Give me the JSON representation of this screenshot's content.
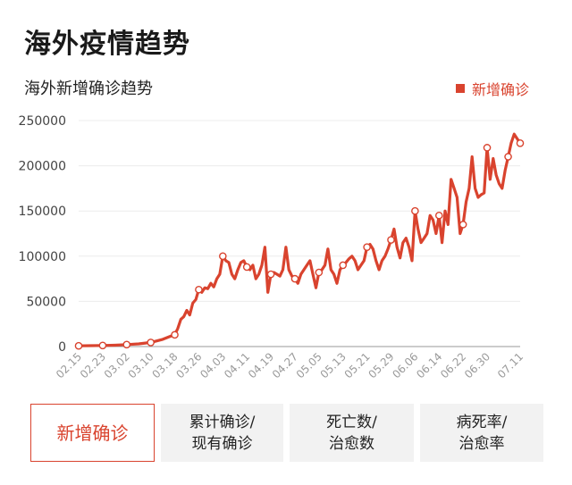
{
  "page": {
    "title": "海外疫情趋势"
  },
  "legend": {
    "label": "新增确诊",
    "color": "#d9432e"
  },
  "tabs": [
    {
      "label": "新增确诊",
      "active": true
    },
    {
      "label": "累计确诊/\n现有确诊",
      "active": false
    },
    {
      "label": "死亡数/\n治愈数",
      "active": false
    },
    {
      "label": "病死率/\n治愈率",
      "active": false
    }
  ],
  "chart_data": {
    "type": "line",
    "title": "海外新增确诊趋势",
    "xlabel": "",
    "ylabel": "",
    "ylim": [
      0,
      250000
    ],
    "yticks": [
      "250000",
      "200000",
      "150000",
      "100000",
      "50000",
      "0"
    ],
    "ytick_values": [
      250000,
      200000,
      150000,
      100000,
      50000,
      0
    ],
    "xticks": [
      "02.15",
      "02.23",
      "03.02",
      "03.10",
      "03.18",
      "03.26",
      "04.03",
      "04.11",
      "04.19",
      "04.27",
      "05.05",
      "05.13",
      "05.21",
      "05.29",
      "06.06",
      "06.14",
      "06.22",
      "06.30",
      "07.11"
    ],
    "grid": true,
    "line_color": "#d9432e",
    "series": [
      {
        "name": "新增确诊",
        "points": [
          [
            "02.15",
            800
          ],
          [
            "02.19",
            1000
          ],
          [
            "02.23",
            1200
          ],
          [
            "02.27",
            1500
          ],
          [
            "03.02",
            2200
          ],
          [
            "03.06",
            3000
          ],
          [
            "03.10",
            4500
          ],
          [
            "03.14",
            8000
          ],
          [
            "03.17",
            12000
          ],
          [
            "03.18",
            13000
          ],
          [
            "03.19",
            20000
          ],
          [
            "03.20",
            30000
          ],
          [
            "03.21",
            33000
          ],
          [
            "03.22",
            40000
          ],
          [
            "03.23",
            35000
          ],
          [
            "03.24",
            48000
          ],
          [
            "03.25",
            52000
          ],
          [
            "03.26",
            63000
          ],
          [
            "03.27",
            60000
          ],
          [
            "03.28",
            65000
          ],
          [
            "03.29",
            64000
          ],
          [
            "03.30",
            70000
          ],
          [
            "03.31",
            66000
          ],
          [
            "04.01",
            75000
          ],
          [
            "04.02",
            80000
          ],
          [
            "04.03",
            100000
          ],
          [
            "04.04",
            95000
          ],
          [
            "04.05",
            93000
          ],
          [
            "04.06",
            80000
          ],
          [
            "04.07",
            75000
          ],
          [
            "04.08",
            85000
          ],
          [
            "04.09",
            93000
          ],
          [
            "04.10",
            95000
          ],
          [
            "04.11",
            88000
          ],
          [
            "04.12",
            85000
          ],
          [
            "04.13",
            90000
          ],
          [
            "04.14",
            75000
          ],
          [
            "04.15",
            80000
          ],
          [
            "04.16",
            90000
          ],
          [
            "04.17",
            110000
          ],
          [
            "04.18",
            60000
          ],
          [
            "04.19",
            80000
          ],
          [
            "04.20",
            82000
          ],
          [
            "04.21",
            80000
          ],
          [
            "04.22",
            78000
          ],
          [
            "04.23",
            85000
          ],
          [
            "04.24",
            110000
          ],
          [
            "04.25",
            85000
          ],
          [
            "04.26",
            78000
          ],
          [
            "04.27",
            75000
          ],
          [
            "04.28",
            70000
          ],
          [
            "04.29",
            80000
          ],
          [
            "04.30",
            85000
          ],
          [
            "05.01",
            90000
          ],
          [
            "05.02",
            95000
          ],
          [
            "05.03",
            80000
          ],
          [
            "05.04",
            65000
          ],
          [
            "05.05",
            82000
          ],
          [
            "05.06",
            85000
          ],
          [
            "05.07",
            90000
          ],
          [
            "05.08",
            108000
          ],
          [
            "05.09",
            85000
          ],
          [
            "05.10",
            80000
          ],
          [
            "05.11",
            70000
          ],
          [
            "05.12",
            85000
          ],
          [
            "05.13",
            90000
          ],
          [
            "05.14",
            93000
          ],
          [
            "05.15",
            97000
          ],
          [
            "05.16",
            100000
          ],
          [
            "05.17",
            95000
          ],
          [
            "05.18",
            85000
          ],
          [
            "05.19",
            90000
          ],
          [
            "05.20",
            95000
          ],
          [
            "05.21",
            110000
          ],
          [
            "05.22",
            113000
          ],
          [
            "05.23",
            108000
          ],
          [
            "05.24",
            95000
          ],
          [
            "05.25",
            85000
          ],
          [
            "05.26",
            95000
          ],
          [
            "05.27",
            100000
          ],
          [
            "05.28",
            108000
          ],
          [
            "05.29",
            118000
          ],
          [
            "05.30",
            130000
          ],
          [
            "05.31",
            110000
          ],
          [
            "06.01",
            98000
          ],
          [
            "06.02",
            115000
          ],
          [
            "06.03",
            120000
          ],
          [
            "06.04",
            110000
          ],
          [
            "06.05",
            95000
          ],
          [
            "06.06",
            150000
          ],
          [
            "06.07",
            130000
          ],
          [
            "06.08",
            115000
          ],
          [
            "06.09",
            120000
          ],
          [
            "06.10",
            125000
          ],
          [
            "06.11",
            145000
          ],
          [
            "06.12",
            140000
          ],
          [
            "06.13",
            125000
          ],
          [
            "06.14",
            145000
          ],
          [
            "06.15",
            115000
          ],
          [
            "06.16",
            150000
          ],
          [
            "06.17",
            135000
          ],
          [
            "06.18",
            185000
          ],
          [
            "06.19",
            175000
          ],
          [
            "06.20",
            165000
          ],
          [
            "06.21",
            125000
          ],
          [
            "06.22",
            135000
          ],
          [
            "06.23",
            160000
          ],
          [
            "06.24",
            175000
          ],
          [
            "06.25",
            210000
          ],
          [
            "06.26",
            175000
          ],
          [
            "06.27",
            165000
          ],
          [
            "06.28",
            168000
          ],
          [
            "06.29",
            170000
          ],
          [
            "06.30",
            220000
          ],
          [
            "07.01",
            185000
          ],
          [
            "07.02",
            208000
          ],
          [
            "07.03",
            190000
          ],
          [
            "07.04",
            180000
          ],
          [
            "07.05",
            175000
          ],
          [
            "07.06",
            195000
          ],
          [
            "07.07",
            210000
          ],
          [
            "07.08",
            225000
          ],
          [
            "07.09",
            235000
          ],
          [
            "07.10",
            230000
          ],
          [
            "07.11",
            225000
          ]
        ],
        "markers": [
          "02.15",
          "02.23",
          "03.02",
          "03.10",
          "03.18",
          "03.26",
          "04.03",
          "04.11",
          "04.19",
          "04.27",
          "05.05",
          "05.13",
          "05.21",
          "05.29",
          "06.06",
          "06.14",
          "06.22",
          "06.30",
          "07.07",
          "07.11"
        ]
      }
    ]
  }
}
